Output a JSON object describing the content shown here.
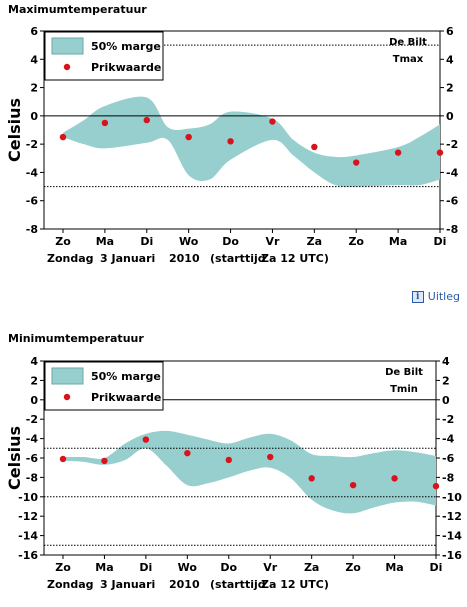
{
  "max_section": {
    "heading": "Maximumtemperatuur"
  },
  "min_section": {
    "heading": "Minimumtemperatuur"
  },
  "uitleg": {
    "label": "Uitleg",
    "icon": "info-icon"
  },
  "colors": {
    "band": "#97cfcf",
    "band_stroke": "#6aa8a8",
    "dot": "#d8131b"
  },
  "chart_data": [
    {
      "type": "area",
      "station": "De Bilt",
      "variable": "Tmax",
      "ylabel": "Celsius",
      "legend": {
        "band_label": "50% marge",
        "dot_label": "Prikwaarde",
        "placement": "top-left"
      },
      "categories": [
        "Zo",
        "Ma",
        "Di",
        "Wo",
        "Do",
        "Vr",
        "Za",
        "Zo",
        "Ma",
        "Di"
      ],
      "xlabel_parts": [
        "Zondag",
        "3 Januari",
        "2010",
        "(starttijd",
        "Za 12 UTC)"
      ],
      "ylim": [
        -8,
        6
      ],
      "yticks": [
        6,
        4,
        2,
        0,
        -2,
        -4,
        -6,
        -8
      ],
      "ref_lines": [
        5,
        -5
      ],
      "x": [
        0,
        0.5,
        1,
        1.5,
        2,
        2.5,
        3,
        3.5,
        4,
        4.5,
        5,
        5.5,
        6,
        6.5,
        7,
        7.5,
        8,
        8.5,
        9
      ],
      "band_upper": [
        -1.2,
        -0.3,
        0.7,
        1.3,
        -0.8,
        -0.9,
        -0.6,
        0.3,
        -0.2,
        -1.7,
        -2.6,
        -2.9,
        -2.8,
        -2.2,
        -1.5,
        -0.6
      ],
      "band_lower": [
        -1.5,
        -2.0,
        -2.3,
        -1.9,
        -1.7,
        -4.2,
        -4.5,
        -3.1,
        -1.7,
        -2.8,
        -4.0,
        -4.9,
        -5.0,
        -4.9,
        -4.9,
        -4.5
      ],
      "band_x": [
        0,
        0.5,
        1,
        2,
        2.5,
        3,
        3.5,
        4,
        5,
        5.5,
        6,
        6.5,
        7,
        8,
        8.5,
        9
      ],
      "series": [
        {
          "name": "Prikwaarde",
          "values": [
            -1.5,
            -0.5,
            -0.3,
            -1.5,
            -1.8,
            -0.4,
            -2.2,
            -3.3,
            -2.6,
            -2.6
          ]
        }
      ]
    },
    {
      "type": "area",
      "station": "De Bilt",
      "variable": "Tmin",
      "ylabel": "Celsius",
      "legend": {
        "band_label": "50% marge",
        "dot_label": "Prikwaarde",
        "placement": "top-left"
      },
      "categories": [
        "Zo",
        "Ma",
        "Di",
        "Wo",
        "Do",
        "Vr",
        "Za",
        "Zo",
        "Ma",
        "Di"
      ],
      "xlabel_parts": [
        "Zondag",
        "3 Januari",
        "2010",
        "(starttijd",
        "Za 12 UTC)"
      ],
      "ylim": [
        -16,
        4
      ],
      "yticks": [
        4,
        2,
        0,
        -2,
        -4,
        -6,
        -8,
        -10,
        -12,
        -14,
        -16
      ],
      "ref_lines": [
        -5,
        -10,
        -15
      ],
      "band_x": [
        0,
        0.5,
        1,
        1.5,
        2,
        2.5,
        3,
        3.5,
        4,
        4.5,
        5,
        5.5,
        6,
        6.5,
        7,
        7.5,
        8,
        8.5,
        9
      ],
      "band_upper": [
        -5.9,
        -5.9,
        -6.0,
        -4.5,
        -3.5,
        -3.2,
        -3.6,
        -4.1,
        -4.5,
        -3.9,
        -3.5,
        -4.2,
        -5.6,
        -5.8,
        -5.9,
        -5.5,
        -5.2,
        -5.4,
        -5.8
      ],
      "band_lower": [
        -6.3,
        -6.4,
        -6.7,
        -6.2,
        -5.0,
        -6.8,
        -8.8,
        -8.6,
        -8.0,
        -7.3,
        -7.0,
        -8.1,
        -10.3,
        -11.4,
        -11.7,
        -11.1,
        -10.6,
        -10.5,
        -10.9
      ],
      "series": [
        {
          "name": "Prikwaarde",
          "values": [
            -6.1,
            -6.3,
            -4.1,
            -5.5,
            -6.2,
            -5.9,
            -8.1,
            -8.8,
            -8.1,
            -8.9
          ]
        }
      ]
    }
  ]
}
